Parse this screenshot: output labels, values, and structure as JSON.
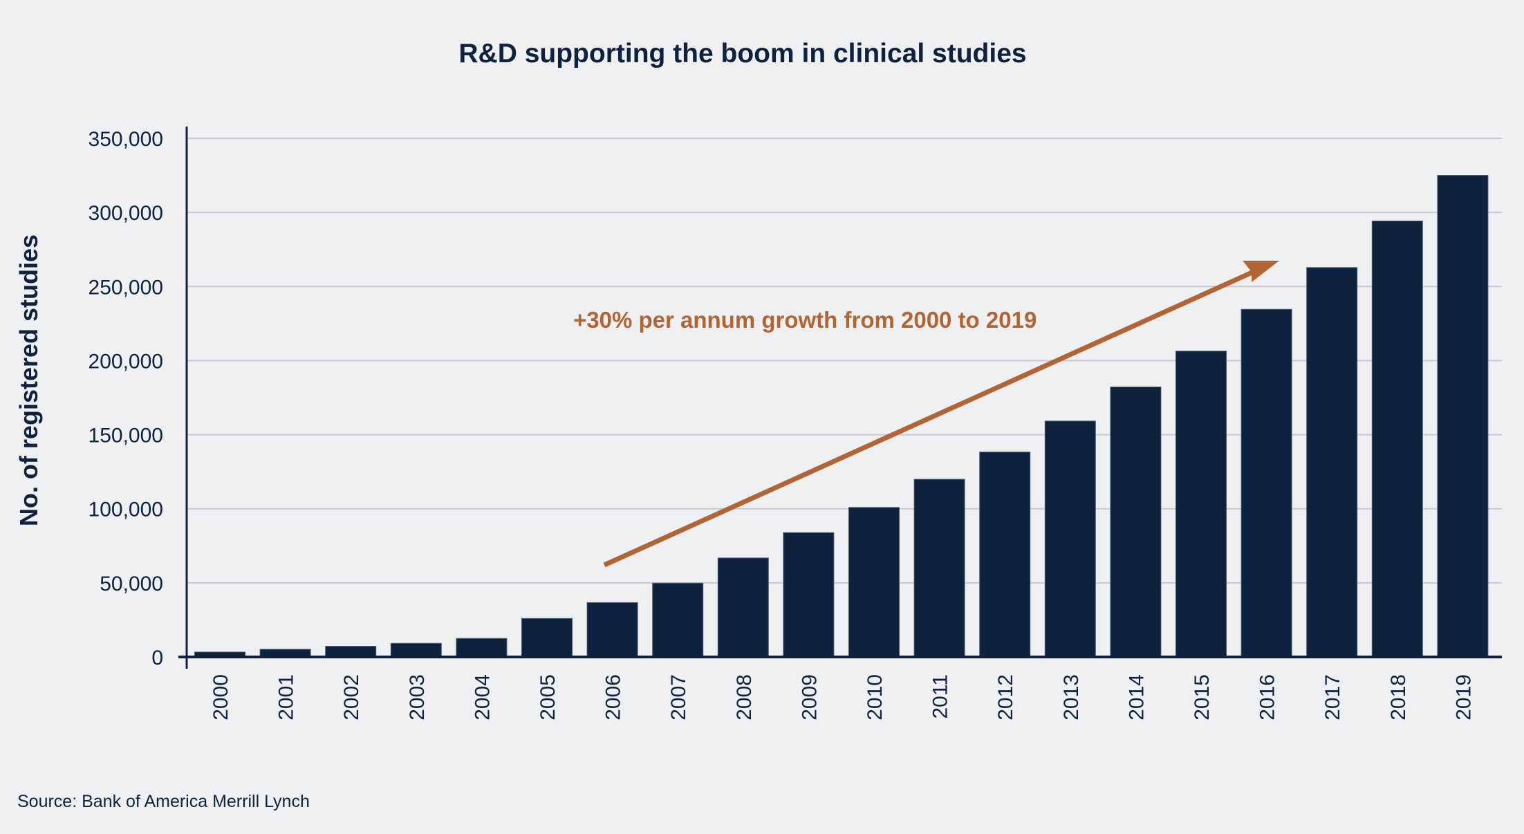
{
  "chart_data": {
    "type": "bar",
    "title": "R&D supporting the boom in clinical studies",
    "xlabel": "",
    "ylabel": "No. of registered studies",
    "categories": [
      "2000",
      "2001",
      "2002",
      "2003",
      "2004",
      "2005",
      "2006",
      "2007",
      "2008",
      "2009",
      "2010",
      "2011",
      "2012",
      "2013",
      "2014",
      "2015",
      "2016",
      "2017",
      "2018",
      "2019"
    ],
    "values": [
      3300,
      5200,
      7200,
      9200,
      12500,
      26000,
      36700,
      49800,
      66800,
      83900,
      100900,
      119900,
      138300,
      159200,
      182200,
      206400,
      234600,
      262800,
      294200,
      325000
    ],
    "ylim": [
      0,
      350000
    ],
    "yticks": [
      0,
      50000,
      100000,
      150000,
      200000,
      250000,
      300000,
      350000
    ],
    "ytick_labels": [
      "0",
      "50,000",
      "100,000",
      "150,000",
      "200,000",
      "250,000",
      "300,000",
      "350,000"
    ],
    "grid": true,
    "annotation": {
      "text": "+30% per annum growth from 2000 to 2019",
      "arrow_from_year": "2006",
      "arrow_to_year": "2016"
    },
    "source": "Source: Bank of America Merrill Lynch",
    "colors": {
      "bar": "#0e2240",
      "annotation": "#b26532",
      "grid": "#c8c9cc",
      "background": "#eff0f2"
    }
  }
}
